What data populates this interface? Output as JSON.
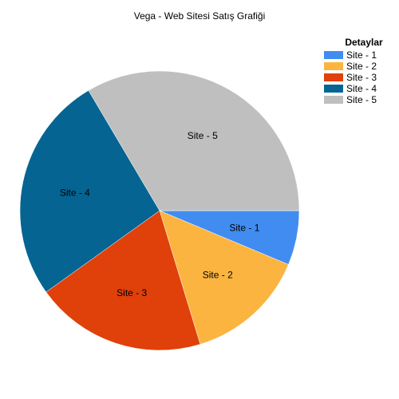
{
  "chart_data": {
    "type": "pie",
    "title": "Vega - Web Sitesi Satış Grafiği",
    "legend_title": "Detaylar",
    "legend_position": "top-right",
    "start_angle_deg": 0,
    "direction": "clockwise",
    "slices": [
      {
        "label": "Site - 1",
        "value": 6.3,
        "color": "#418cf0"
      },
      {
        "label": "Site - 2",
        "value": 14.0,
        "color": "#fcb441"
      },
      {
        "label": "Site - 3",
        "value": 19.8,
        "color": "#e0400a"
      },
      {
        "label": "Site - 4",
        "value": 26.4,
        "color": "#056492"
      },
      {
        "label": "Site - 5",
        "value": 33.5,
        "color": "#bfbfbf"
      }
    ]
  }
}
